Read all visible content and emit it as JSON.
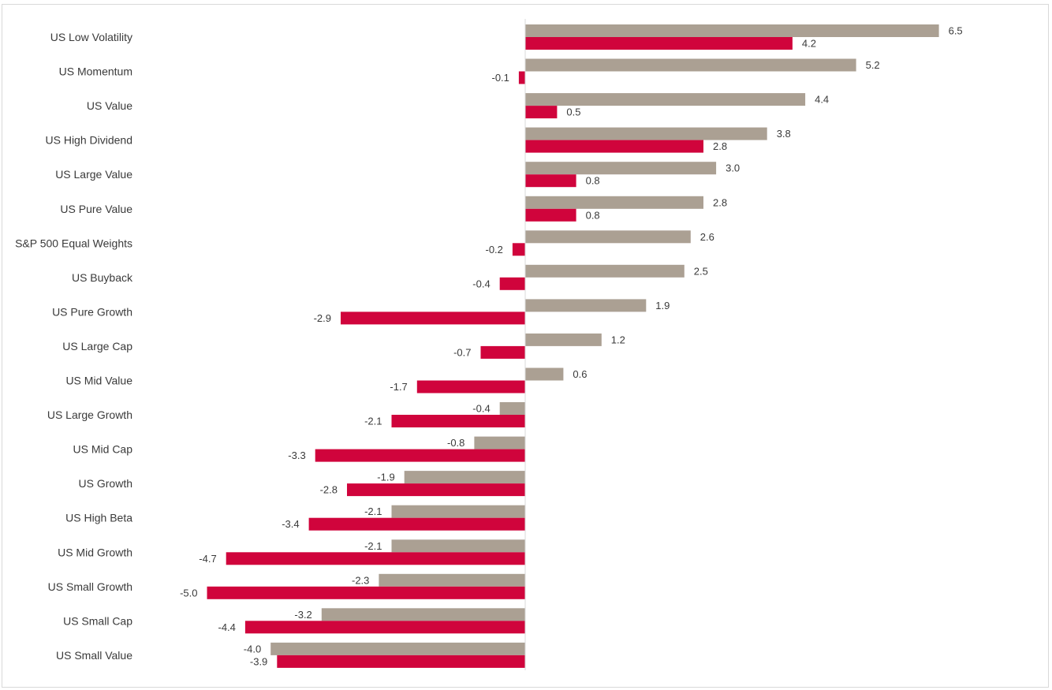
{
  "chart_data": {
    "type": "bar",
    "orientation": "horizontal",
    "categories": [
      "US Low Volatility",
      "US Momentum",
      "US Value",
      "US High Dividend",
      "US Large Value",
      "US Pure Value",
      "S&P 500 Equal Weights",
      "US Buyback",
      "US Pure Growth",
      "US Large Cap",
      "US Mid Value",
      "US Large Growth",
      "US Mid Cap",
      "US Growth",
      "US High Beta",
      "US Mid Growth",
      "US Small Growth",
      "US Small Cap",
      "US Small Value"
    ],
    "series": [
      {
        "color": "#aba093",
        "values": [
          6.5,
          5.2,
          4.4,
          3.8,
          3.0,
          2.8,
          2.6,
          2.5,
          1.9,
          1.2,
          0.6,
          -0.4,
          -0.8,
          -1.9,
          -2.1,
          -2.1,
          -2.3,
          -3.2,
          -4.0
        ],
        "labels": [
          "6.5",
          "5.2",
          "4.4",
          "3.8",
          "3.0",
          "2.8",
          "2.6",
          "2.5",
          "1.9",
          "1.2",
          "0.6",
          "-0.4",
          "-0.8",
          "-1.9",
          "-2.1",
          "-2.1",
          "-2.3",
          "-3.2",
          "-4.0"
        ]
      },
      {
        "color": "#d0043c",
        "values": [
          4.2,
          -0.1,
          0.5,
          2.8,
          0.8,
          0.8,
          -0.2,
          -0.4,
          -2.9,
          -0.7,
          -1.7,
          -2.1,
          -3.3,
          -2.8,
          -3.4,
          -4.7,
          -5.0,
          -4.4,
          -3.9
        ],
        "labels": [
          "4.2",
          "-0.1",
          "0.5",
          "2.8",
          "0.8",
          "0.8",
          "-0.2",
          "-0.4",
          "-2.9",
          "-0.7",
          "-1.7",
          "-2.1",
          "-3.3",
          "-2.8",
          "-3.4",
          "-4.7",
          "-5.0",
          "-4.4",
          "-3.9"
        ]
      }
    ],
    "title": "",
    "xlabel": "",
    "ylabel": "",
    "xlim": [
      -5.0,
      6.5
    ],
    "grid": false,
    "legend": "none"
  }
}
